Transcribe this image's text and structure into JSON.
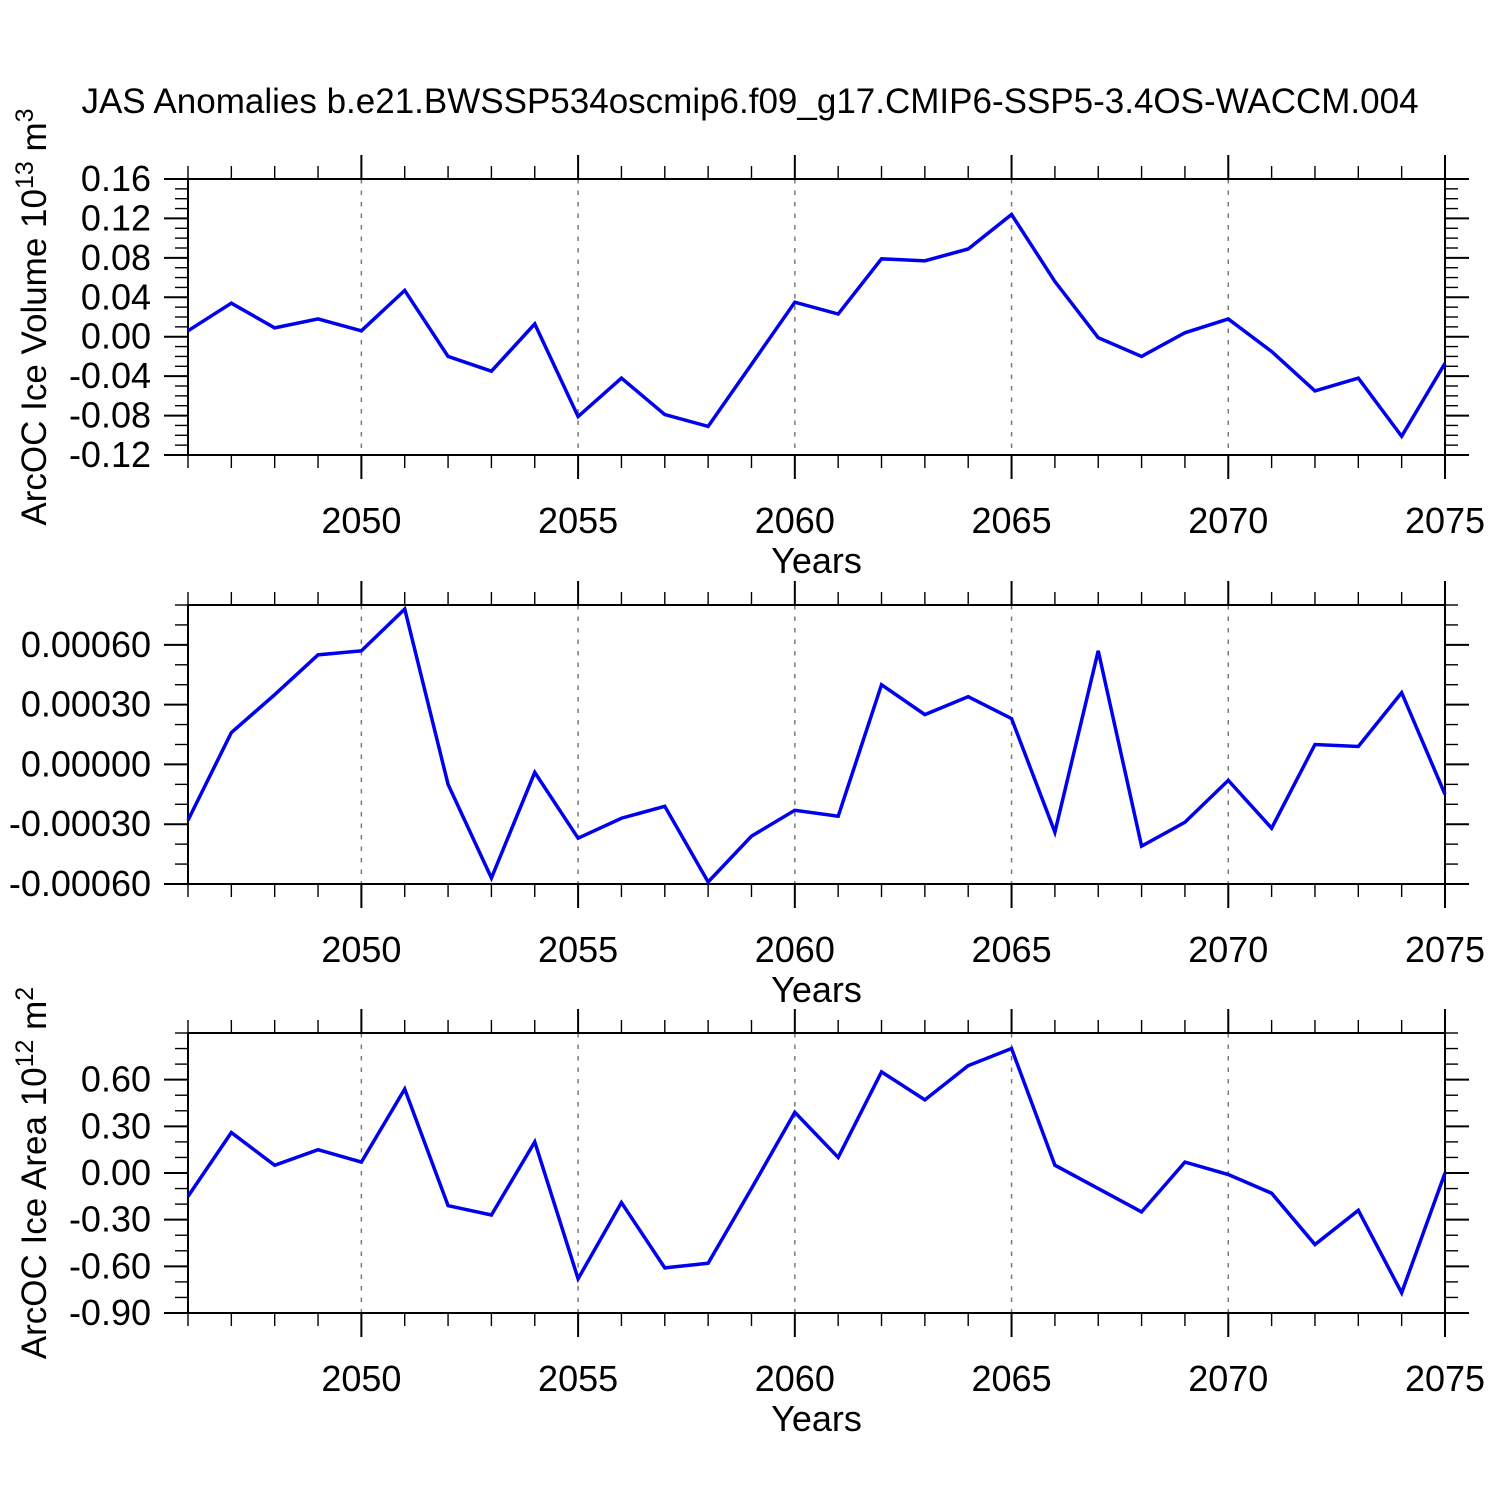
{
  "title": "JAS Anomalies b.e21.BWSSP534oscmip6.f09_g17.CMIP6-SSP5-3.4OS-WACCM.004",
  "colors": {
    "line": "#0000ee",
    "grid": "#7a7a7a",
    "axis": "#000000",
    "background": "#ffffff",
    "text": "#000000"
  },
  "chart_data": [
    {
      "type": "line",
      "name": "ice-volume-anomaly",
      "ylabel": "ArcOC Ice Volume 10^13 m^3",
      "ylabel_parts": [
        {
          "text": "ArcOC Ice Volume 10"
        },
        {
          "text": "13",
          "sup": true
        },
        {
          "text": " m"
        },
        {
          "text": "3",
          "sup": true
        }
      ],
      "xlabel": "Years",
      "xlim": [
        2046,
        2075
      ],
      "ylim": [
        -0.12,
        0.16
      ],
      "x_major_ticks": [
        2050,
        2055,
        2060,
        2065,
        2070,
        2075
      ],
      "x_gridlines": [
        2050,
        2055,
        2060,
        2065,
        2070
      ],
      "ytick_values": [
        0.16,
        0.12,
        0.08,
        0.04,
        0.0,
        -0.04,
        -0.08,
        -0.12
      ],
      "ytick_labels": [
        "0.16",
        "0.12",
        "0.08",
        "0.04",
        "0.00",
        "-0.04",
        "-0.08",
        "-0.12"
      ],
      "yminor_step": 0.01,
      "grid": "vertical-dashed",
      "legend": "none",
      "x": [
        2046,
        2047,
        2048,
        2049,
        2050,
        2051,
        2052,
        2053,
        2054,
        2055,
        2056,
        2057,
        2058,
        2059,
        2060,
        2061,
        2062,
        2063,
        2064,
        2065,
        2066,
        2067,
        2068,
        2069,
        2070,
        2071,
        2072,
        2073,
        2074,
        2075
      ],
      "values": [
        0.006,
        0.034,
        0.009,
        0.018,
        0.006,
        0.047,
        -0.02,
        -0.035,
        0.013,
        -0.081,
        -0.042,
        -0.079,
        -0.091,
        -0.028,
        0.035,
        0.023,
        0.079,
        0.077,
        0.089,
        0.124,
        0.056,
        -0.001,
        -0.02,
        0.004,
        0.018,
        -0.015,
        -0.055,
        -0.042,
        -0.101,
        -0.027
      ]
    },
    {
      "type": "line",
      "name": "middle-anomaly",
      "ylabel": null,
      "ylabel_parts": null,
      "xlabel": "Years",
      "xlim": [
        2046,
        2075
      ],
      "ylim": [
        -0.0006,
        0.0008
      ],
      "x_major_ticks": [
        2050,
        2055,
        2060,
        2065,
        2070,
        2075
      ],
      "x_gridlines": [
        2050,
        2055,
        2060,
        2065,
        2070
      ],
      "ytick_values": [
        0.0006,
        0.0003,
        0.0,
        -0.0003,
        -0.0006
      ],
      "ytick_labels": [
        "0.00060",
        "0.00030",
        "0.00000",
        "-0.00030",
        "-0.00060"
      ],
      "yminor_step": 0.0001,
      "grid": "vertical-dashed",
      "legend": "none",
      "x": [
        2046,
        2047,
        2048,
        2049,
        2050,
        2051,
        2052,
        2053,
        2054,
        2055,
        2056,
        2057,
        2058,
        2059,
        2060,
        2061,
        2062,
        2063,
        2064,
        2065,
        2066,
        2067,
        2068,
        2069,
        2070,
        2071,
        2072,
        2073,
        2074,
        2075
      ],
      "values": [
        -0.00028,
        0.00016,
        0.00035,
        0.00055,
        0.00057,
        0.00078,
        -0.0001,
        -0.00057,
        -4e-05,
        -0.00037,
        -0.00027,
        -0.00021,
        -0.00059,
        -0.00036,
        -0.00023,
        -0.00026,
        0.0004,
        0.00025,
        0.00034,
        0.00023,
        -0.00034,
        0.00057,
        -0.00041,
        -0.00029,
        -8e-05,
        -0.00032,
        0.0001,
        9e-05,
        0.00036,
        -0.00015
      ]
    },
    {
      "type": "line",
      "name": "ice-area-anomaly",
      "ylabel": "ArcOC Ice Area 10^12 m^2",
      "ylabel_parts": [
        {
          "text": "ArcOC Ice Area 10"
        },
        {
          "text": "12",
          "sup": true
        },
        {
          "text": " m"
        },
        {
          "text": "2",
          "sup": true
        }
      ],
      "xlabel": "Years",
      "xlim": [
        2046,
        2075
      ],
      "ylim": [
        -0.9,
        0.9
      ],
      "x_major_ticks": [
        2050,
        2055,
        2060,
        2065,
        2070,
        2075
      ],
      "x_gridlines": [
        2050,
        2055,
        2060,
        2065,
        2070
      ],
      "ytick_values": [
        0.6,
        0.3,
        0.0,
        -0.3,
        -0.6,
        -0.9
      ],
      "ytick_labels": [
        "0.60",
        "0.30",
        "0.00",
        "-0.30",
        "-0.60",
        "-0.90"
      ],
      "yminor_step": 0.1,
      "grid": "vertical-dashed",
      "legend": "none",
      "x": [
        2046,
        2047,
        2048,
        2049,
        2050,
        2051,
        2052,
        2053,
        2054,
        2055,
        2056,
        2057,
        2058,
        2059,
        2060,
        2061,
        2062,
        2063,
        2064,
        2065,
        2066,
        2067,
        2068,
        2069,
        2070,
        2071,
        2072,
        2073,
        2074,
        2075
      ],
      "values": [
        -0.15,
        0.26,
        0.05,
        0.15,
        0.07,
        0.54,
        -0.21,
        -0.27,
        0.2,
        -0.68,
        -0.19,
        -0.61,
        -0.58,
        -0.1,
        0.39,
        0.1,
        0.65,
        0.47,
        0.69,
        0.8,
        0.05,
        -0.1,
        -0.25,
        0.07,
        -0.01,
        -0.13,
        -0.46,
        -0.24,
        -0.77,
        0.0
      ]
    }
  ]
}
